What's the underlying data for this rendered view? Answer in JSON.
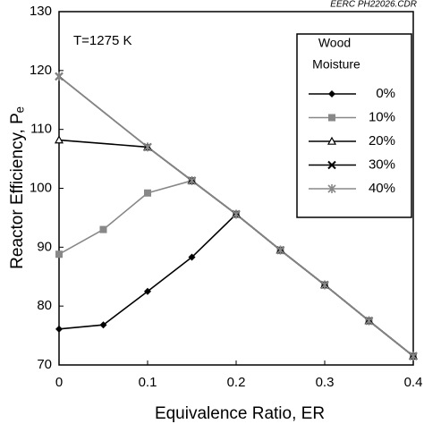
{
  "chart_data": {
    "type": "line",
    "annotation_source": "EERC PH22026.CDR",
    "annotation_temp": "T=1275 K",
    "xlabel": "Equivalence Ratio, ER",
    "ylabel": "Reactor Efficiency, Pₑ",
    "legend_title": [
      "Wood",
      "Moisture"
    ],
    "xlim": [
      0,
      0.4
    ],
    "xticks": [
      0,
      0.1,
      0.2,
      0.3,
      0.4
    ],
    "ylim": [
      70,
      130
    ],
    "yticks": [
      70,
      80,
      90,
      100,
      110,
      120,
      130
    ],
    "series": [
      {
        "name": "0%",
        "color": "#000000",
        "marker": "diamond",
        "x": [
          0,
          0.05,
          0.1,
          0.15,
          0.2,
          0.25,
          0.3,
          0.35,
          0.4
        ],
        "values": [
          76.1,
          76.8,
          82.5,
          88.3,
          95.6,
          89.5,
          83.6,
          77.5,
          71.5
        ]
      },
      {
        "name": "10%",
        "color": "#888888",
        "marker": "square",
        "x": [
          0,
          0.05,
          0.1,
          0.15,
          0.2,
          0.25,
          0.3,
          0.35,
          0.4
        ],
        "values": [
          88.8,
          93,
          99.2,
          101.3,
          95.6,
          89.5,
          83.6,
          77.5,
          71.5
        ]
      },
      {
        "name": "20%",
        "color": "#000000",
        "marker": "triangle",
        "x": [
          0,
          0.1,
          0.15,
          0.2,
          0.25,
          0.3,
          0.35,
          0.4
        ],
        "values": [
          108.2,
          107,
          101.3,
          95.6,
          89.5,
          83.6,
          77.5,
          71.5
        ]
      },
      {
        "name": "30%",
        "color": "#000000",
        "marker": "x",
        "x": [
          0,
          0.1,
          0.15,
          0.2,
          0.25,
          0.3,
          0.35,
          0.4
        ],
        "values": [
          119,
          107,
          101.3,
          95.6,
          89.5,
          83.6,
          77.5,
          71.5
        ]
      },
      {
        "name": "40%",
        "color": "#888888",
        "marker": "star",
        "x": [
          0,
          0.1,
          0.15,
          0.2,
          0.25,
          0.3,
          0.35,
          0.4
        ],
        "values": [
          119,
          107,
          101.3,
          95.6,
          89.5,
          83.6,
          77.5,
          71.5
        ]
      }
    ]
  }
}
